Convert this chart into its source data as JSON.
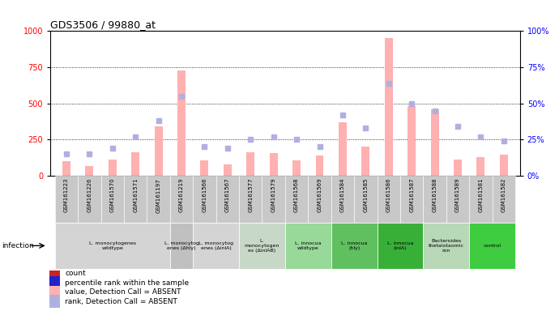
{
  "title": "GDS3506 / 99880_at",
  "samples": [
    "GSM161223",
    "GSM161226",
    "GSM161570",
    "GSM161571",
    "GSM161197",
    "GSM161219",
    "GSM161566",
    "GSM161567",
    "GSM161577",
    "GSM161579",
    "GSM161568",
    "GSM161569",
    "GSM161584",
    "GSM161585",
    "GSM161586",
    "GSM161587",
    "GSM161588",
    "GSM161589",
    "GSM161581",
    "GSM161582"
  ],
  "values": [
    100,
    65,
    110,
    160,
    340,
    730,
    105,
    80,
    160,
    155,
    105,
    140,
    370,
    200,
    950,
    480,
    460,
    110,
    130,
    145
  ],
  "ranks": [
    15,
    15,
    19,
    27,
    38,
    55,
    20,
    19,
    25,
    27,
    25,
    20,
    42,
    33,
    64,
    50,
    45,
    34,
    27,
    24
  ],
  "detection_absent": [
    true,
    true,
    true,
    true,
    true,
    true,
    true,
    true,
    true,
    true,
    true,
    true,
    true,
    true,
    true,
    true,
    true,
    true,
    true,
    true
  ],
  "groups": [
    {
      "label": "L. monocytogenes\nwildtype",
      "start": 0,
      "end": 5,
      "color": "#d4d4d4"
    },
    {
      "label": "L. monocytog\nenes (Δhly)",
      "start": 5,
      "end": 6,
      "color": "#c0c0c0"
    },
    {
      "label": "L. monocytog\nenes (ΔinlA)",
      "start": 6,
      "end": 8,
      "color": "#d4d4d4"
    },
    {
      "label": "L.\nmonocytogen\nes (ΔinlAB)",
      "start": 8,
      "end": 10,
      "color": "#c8d8c8"
    },
    {
      "label": "L. innocua\nwildtype",
      "start": 10,
      "end": 12,
      "color": "#98d898"
    },
    {
      "label": "L. innocua\n(hly)",
      "start": 12,
      "end": 14,
      "color": "#60c060"
    },
    {
      "label": "L. innocua\n(inlA)",
      "start": 14,
      "end": 16,
      "color": "#38b038"
    },
    {
      "label": "Bacteroides\nthetaiotaomic\nron",
      "start": 16,
      "end": 18,
      "color": "#b8d8b8"
    },
    {
      "label": "control",
      "start": 18,
      "end": 20,
      "color": "#40cc40"
    }
  ],
  "bar_color_absent": "#ffb0b0",
  "rank_color_absent": "#b0b0e0",
  "ylim_left": [
    0,
    1000
  ],
  "ylim_right": [
    0,
    100
  ],
  "yticks_left": [
    0,
    250,
    500,
    750,
    1000
  ],
  "yticks_right": [
    0,
    25,
    50,
    75,
    100
  ],
  "legend_items": [
    {
      "label": "count",
      "color": "#cc2222"
    },
    {
      "label": "percentile rank within the sample",
      "color": "#2222cc"
    },
    {
      "label": "value, Detection Call = ABSENT",
      "color": "#ffb0b0"
    },
    {
      "label": "rank, Detection Call = ABSENT",
      "color": "#b0b0e0"
    }
  ],
  "tick_bg_color": "#c8c8c8",
  "plot_bg_color": "#ffffff",
  "fig_bg_color": "#ffffff"
}
